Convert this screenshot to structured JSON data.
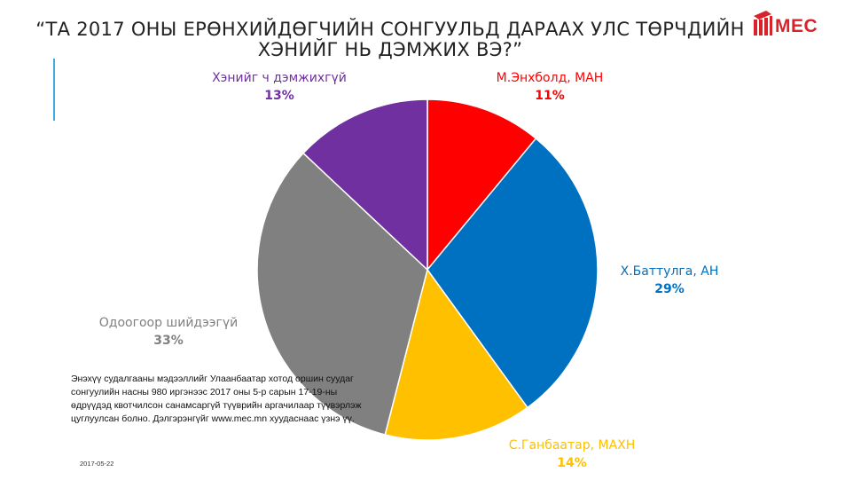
{
  "title": "“ТА 2017 ОНЫ ЕРӨНХИЙДӨГЧИЙН СОНГУУЛЬД ДАРААХ УЛС ТӨРЧДИЙН ХЭНИЙГ НЬ ДЭМЖИХ ВЭ?”",
  "logo": {
    "text": "MEC",
    "color": "#d8232a"
  },
  "chart_data": {
    "type": "pie",
    "title": "“ТА 2017 ОНЫ ЕРӨНХИЙДӨГЧИЙН СОНГУУЛЬД ДАРААХ УЛС ТӨРЧДИЙН ХЭНИЙГ НЬ ДЭМЖИХ ВЭ?”",
    "start": "top, clockwise",
    "slices": [
      {
        "label": "М.Энхболд, МАН",
        "value": 11,
        "display": "11%",
        "color": "#ff0000"
      },
      {
        "label": "Х.Баттулга, АН",
        "value": 29,
        "display": "29%",
        "color": "#0070c0"
      },
      {
        "label": "С.Ганбаатар, МАХН",
        "value": 14,
        "display": "14%",
        "color": "#ffc000"
      },
      {
        "label": "Одоогоор шийдээгүй",
        "value": 33,
        "display": "33%",
        "color": "#808080"
      },
      {
        "label": "Хэнийг ч дэмжихгүй",
        "value": 13,
        "display": "13%",
        "color": "#7030a0"
      }
    ]
  },
  "note": "Энэхүү судалгааны мэдээллийг Улаанбаатар хотод оршин суудаг сонгуулийн насны 980 иргэнээс 2017 оны 5-р сарын 17-19-ны өдрүүдэд квотчилсон санамсаргүй түүврийн аргачилаар түүвэрлэж цуглуулсан болно. Дэлгэрэнгүйг www.mec.mn хуудаснаас үзнэ үү.",
  "date": "2017-05-22"
}
